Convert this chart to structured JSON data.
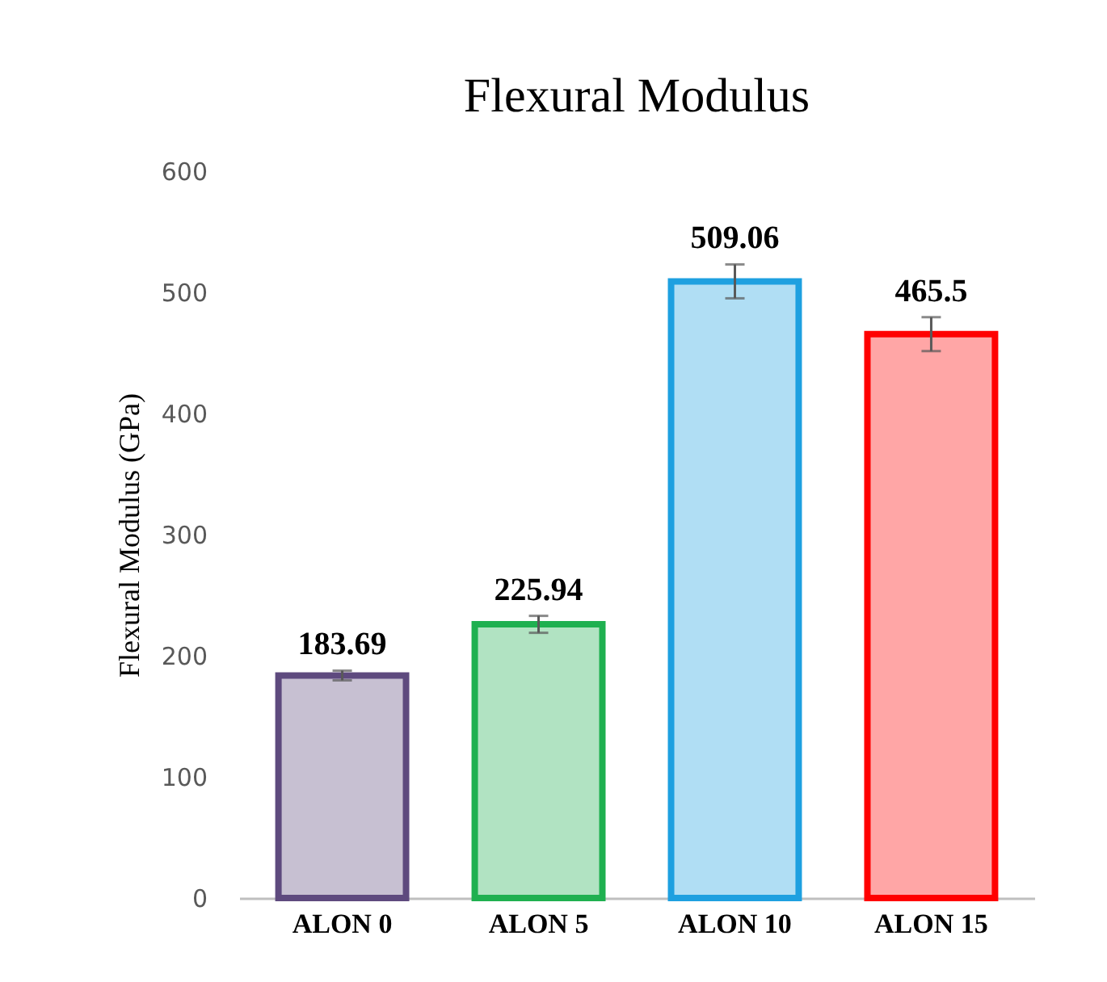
{
  "chart_data": {
    "type": "bar",
    "title": "Flexural Modulus",
    "ylabel": "Flexural  Modulus (GPa)",
    "categories": [
      "ALON 0",
      "ALON 5",
      "ALON 10",
      "ALON 15"
    ],
    "values": [
      183.69,
      225.94,
      509.06,
      465.5
    ],
    "colors": [
      "#5e4a7e",
      "#1fb050",
      "#1ea0e0",
      "#ff0000"
    ],
    "errors": [
      4,
      7,
      14,
      14
    ],
    "ylim": [
      0,
      600
    ],
    "yticks": [
      0,
      100,
      200,
      300,
      400,
      500,
      600
    ],
    "data_labels": true,
    "grid": false,
    "legend": false
  }
}
